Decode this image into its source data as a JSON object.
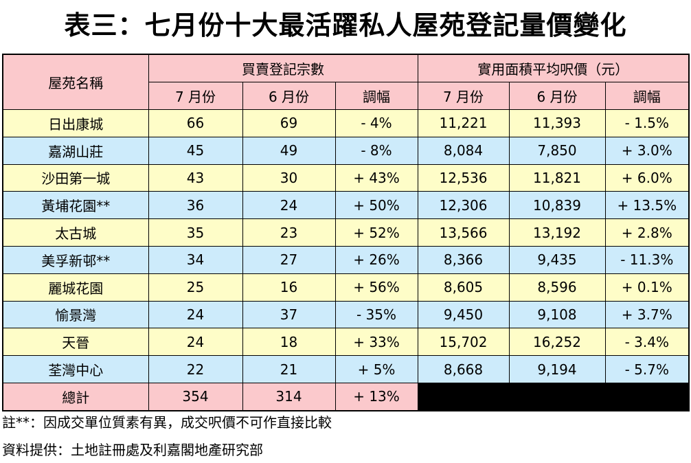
{
  "header": {
    "title": "表三：七月份十大最活躍私人屋苑登記量價變化"
  },
  "table": {
    "name_header": "屋苑名稱",
    "group_headers": [
      "買賣登記宗數",
      "實用面積平均呎價（元）"
    ],
    "sub_headers": [
      "7 月份",
      "6 月份",
      "調幅",
      "7 月份",
      "6 月份",
      "調幅"
    ],
    "rows": [
      [
        "日出康城",
        "66",
        "69",
        "- 4%",
        "11,221",
        "11,393",
        "- 1.5%"
      ],
      [
        "嘉湖山莊",
        "45",
        "49",
        "- 8%",
        "8,084",
        "7,850",
        "+ 3.0%"
      ],
      [
        "沙田第一城",
        "43",
        "30",
        "+ 43%",
        "12,536",
        "11,821",
        "+ 6.0%"
      ],
      [
        "黃埔花園**",
        "36",
        "24",
        "+ 50%",
        "12,306",
        "10,839",
        "+ 13.5%"
      ],
      [
        "太古城",
        "35",
        "23",
        "+ 52%",
        "13,566",
        "13,192",
        "+ 2.8%"
      ],
      [
        "美孚新邨**",
        "34",
        "27",
        "+ 26%",
        "8,366",
        "9,435",
        "- 11.3%"
      ],
      [
        "麗城花園",
        "25",
        "16",
        "+ 56%",
        "8,605",
        "8,596",
        "+ 0.1%"
      ],
      [
        "愉景灣",
        "24",
        "37",
        "- 35%",
        "9,450",
        "9,108",
        "+ 3.7%"
      ],
      [
        "天晉",
        "24",
        "18",
        "+ 33%",
        "15,702",
        "16,252",
        "- 3.4%"
      ],
      [
        "荃灣中心",
        "22",
        "21",
        "+ 5%",
        "8,668",
        "9,194",
        "- 5.7%"
      ]
    ],
    "total": [
      "總計",
      "354",
      "314",
      "+ 13%"
    ]
  },
  "notes": [
    "註**：因成交單位質素有異，成交呎價不可作直接比較",
    "資料提供：土地註冊處及利嘉閣地產研究部"
  ]
}
